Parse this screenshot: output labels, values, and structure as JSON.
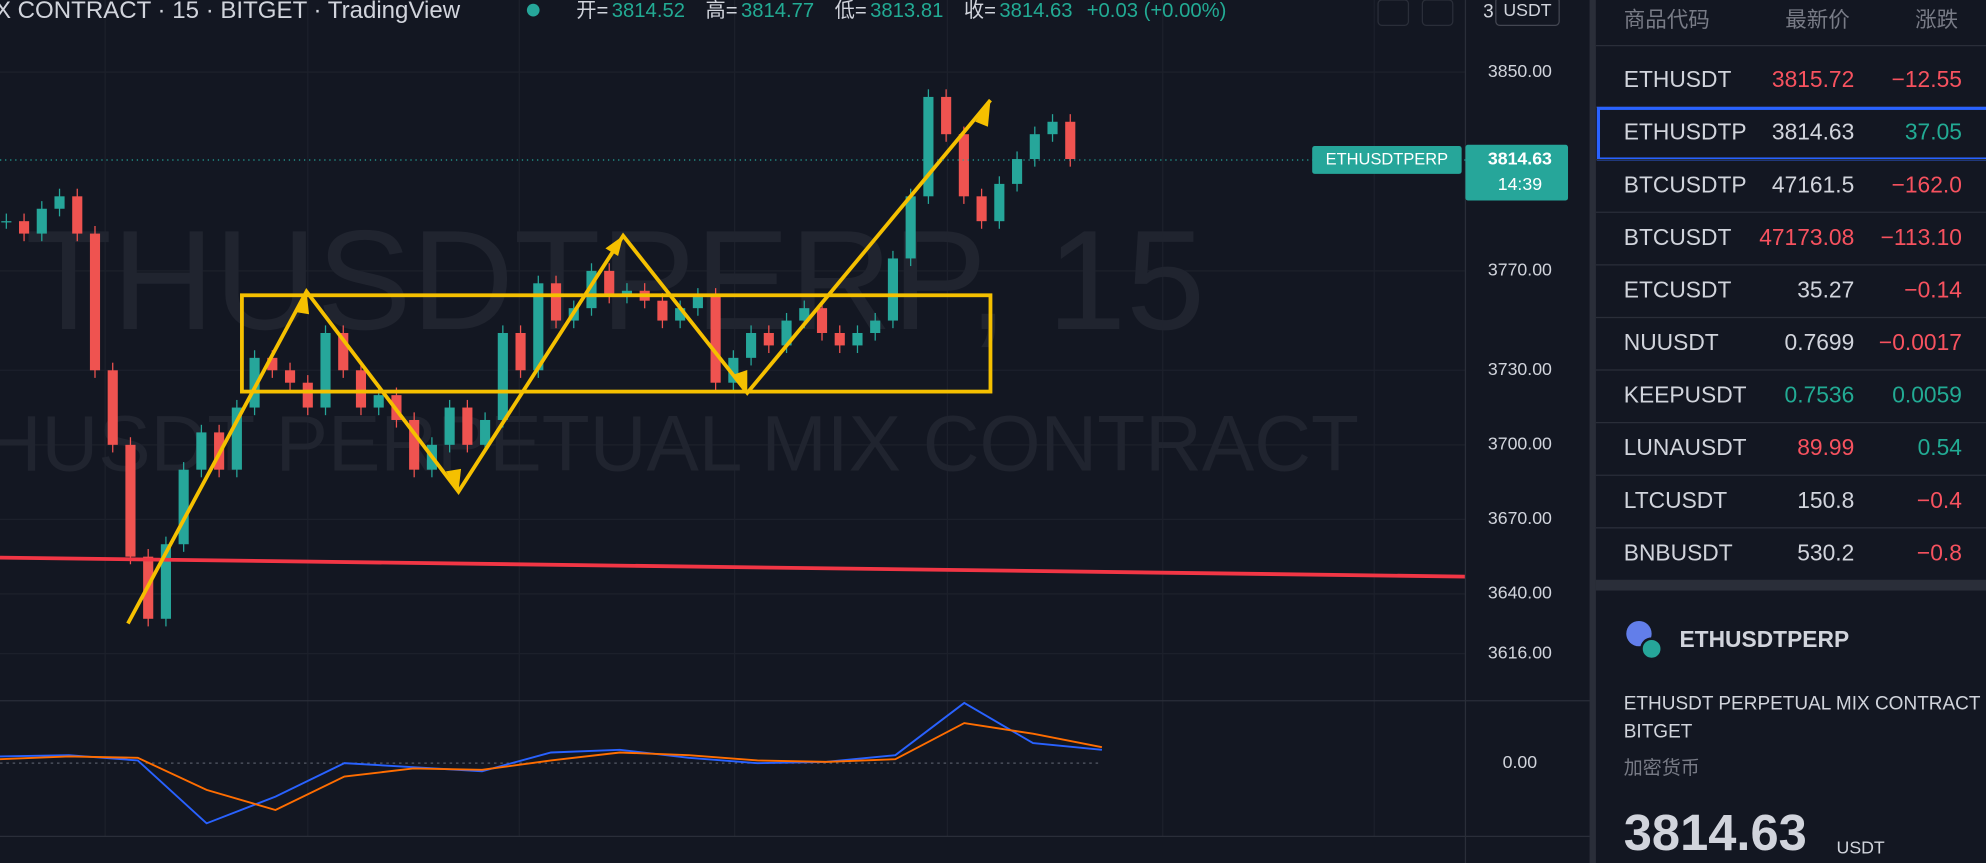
{
  "header": {
    "symbol_text": "X CONTRACT · 15 · BITGET · TradingView",
    "ohlc": [
      {
        "label": "开=",
        "value": "3814.52"
      },
      {
        "label": "高=",
        "value": "3814.77"
      },
      {
        "label": "低=",
        "value": "3813.81"
      },
      {
        "label": "收=",
        "value": "3814.63"
      }
    ],
    "change": "+0.03 (+0.00%)",
    "currency": "USDT",
    "axis_digit": "3"
  },
  "chart": {
    "watermark_1": "THUSDTPERP, 15",
    "watermark_2": "HUSDT PERPETUAL MIX CONTRACT",
    "ylim": [
      3597,
      3879
    ],
    "yticks": [
      {
        "value": 3850,
        "label": "3850.00"
      },
      {
        "value": 3770,
        "label": "3770.00"
      },
      {
        "value": 3730,
        "label": "3730.00"
      },
      {
        "value": 3700,
        "label": "3700.00"
      },
      {
        "value": 3670,
        "label": "3670.00"
      },
      {
        "value": 3640,
        "label": "3640.00"
      },
      {
        "value": 3616,
        "label": "3616.00"
      }
    ],
    "closes": [
      3790,
      3785,
      3795,
      3800,
      3785,
      3730,
      3700,
      3655,
      3630,
      3660,
      3690,
      3705,
      3690,
      3715,
      3735,
      3730,
      3725,
      3715,
      3745,
      3730,
      3715,
      3720,
      3710,
      3690,
      3700,
      3715,
      3700,
      3710,
      3745,
      3730,
      3765,
      3750,
      3755,
      3770,
      3760,
      3762,
      3758,
      3750,
      3755,
      3760,
      3725,
      3735,
      3745,
      3740,
      3750,
      3755,
      3745,
      3740,
      3745,
      3750,
      3775,
      3800,
      3840,
      3825,
      3800,
      3790,
      3805,
      3815,
      3825,
      3830,
      3815
    ],
    "price_label": {
      "symbol": "ETHUSDTPERP",
      "price": {
        "value": 3814.63,
        "label": "3814.63"
      },
      "countdown": "14:39"
    },
    "macd": {
      "ylim": [
        -50,
        40
      ],
      "yticks": [
        {
          "value": 0,
          "label": "0.00"
        }
      ],
      "macd": [
        5,
        6,
        2,
        -45,
        -25,
        0,
        -3,
        -6,
        8,
        10,
        4,
        0,
        1,
        6,
        45,
        15,
        10
      ],
      "signal": [
        3,
        5,
        4,
        -20,
        -35,
        -10,
        -4,
        -5,
        2,
        8,
        6,
        2,
        1,
        3,
        30,
        22,
        12
      ]
    }
  },
  "watchlist": {
    "columns": [
      "商品代码",
      "最新价",
      "涨跌"
    ],
    "rows": [
      [
        "ETHUSDT",
        "3815.72",
        "−12.55"
      ],
      [
        "ETHUSDTP",
        "3814.63",
        "37.05"
      ],
      [
        "BTCUSDTP",
        "47161.5",
        "−162.0"
      ],
      [
        "BTCUSDT",
        "47173.08",
        "−113.10"
      ],
      [
        "ETCUSDT",
        "35.27",
        "−0.14"
      ],
      [
        "NUUSDT",
        "0.7699",
        "−0.0017"
      ],
      [
        "KEEPUSDT",
        "0.7536",
        "0.0059"
      ],
      [
        "LUNAUSDT",
        "89.99",
        "0.54"
      ],
      [
        "LTCUSDT",
        "150.8",
        "−0.4"
      ],
      [
        "BNBUSDT",
        "530.2",
        "−0.8"
      ]
    ],
    "price_colors": [
      "red",
      "white",
      "white",
      "red",
      "white",
      "white",
      "green",
      "red",
      "white",
      "white"
    ],
    "change_colors": [
      "red",
      "green",
      "red",
      "red",
      "red",
      "red",
      "green",
      "green",
      "red",
      "red"
    ],
    "selected": 1
  },
  "detail": {
    "symbol": "ETHUSDTPERP",
    "description": "ETHUSDT PERPETUAL MIX CONTRACT",
    "exchange": "BITGET",
    "category": "加密货币",
    "price": "3814.63",
    "currency": "USDT"
  }
}
